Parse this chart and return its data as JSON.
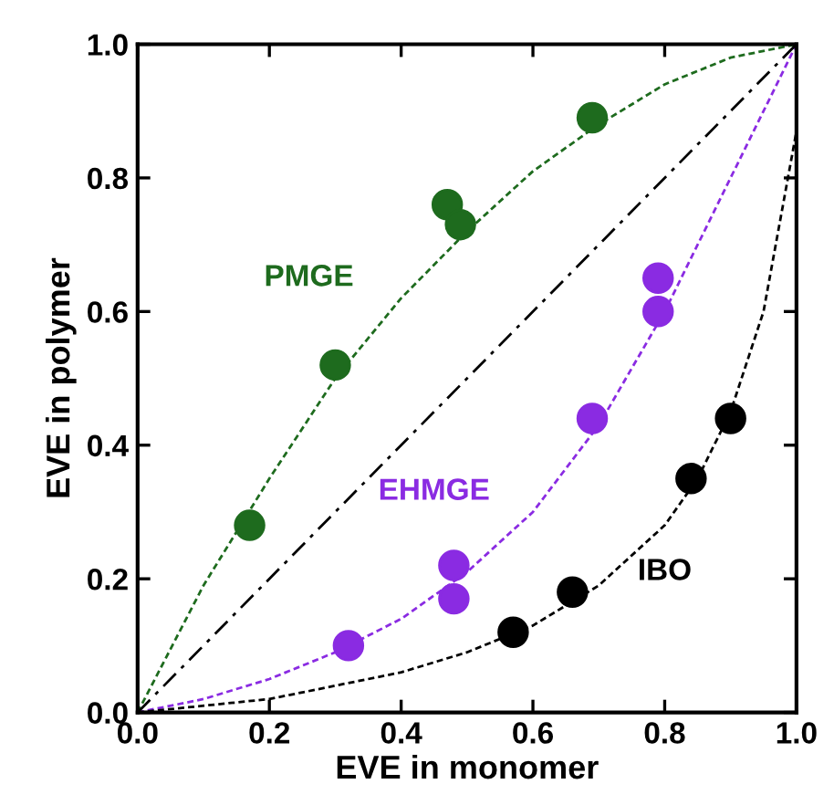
{
  "chart_data": {
    "type": "scatter",
    "xlabel": "EVE in monomer",
    "ylabel": "EVE in polymer",
    "xlim": [
      0,
      1
    ],
    "ylim": [
      0,
      1
    ],
    "xticks": [
      {
        "value": 0,
        "label": "0.0"
      },
      0.2,
      0.4,
      0.6,
      0.8,
      {
        "value": 1,
        "label": "1.0"
      }
    ],
    "yticks": [
      {
        "value": 0,
        "label": "0.0"
      },
      0.2,
      0.4,
      0.6,
      0.8,
      {
        "value": 1,
        "label": "1.0"
      }
    ],
    "grid": false,
    "legend": false,
    "marker": "circle",
    "series": [
      {
        "type": "line",
        "color": "#1e6b1e",
        "line_style": "dotted",
        "marker": "none",
        "x": [
          0,
          0.1,
          0.2,
          0.3,
          0.4,
          0.5,
          0.6,
          0.7,
          0.8,
          0.9,
          1
        ],
        "values": [
          0,
          0.19,
          0.35,
          0.5,
          0.62,
          0.72,
          0.81,
          0.88,
          0.94,
          0.98,
          1
        ]
      },
      {
        "type": "line",
        "color": "#8a2be2",
        "line_style": "dotted",
        "marker": "none",
        "x": [
          0,
          0.1,
          0.2,
          0.3,
          0.4,
          0.5,
          0.6,
          0.7,
          0.8,
          0.9,
          1
        ],
        "values": [
          0,
          0.02,
          0.05,
          0.09,
          0.14,
          0.21,
          0.3,
          0.43,
          0.6,
          0.8,
          1
        ]
      },
      {
        "type": "line",
        "color": "#000000",
        "line_style": "dotted",
        "marker": "none",
        "x": [
          0,
          0.2,
          0.4,
          0.5,
          0.6,
          0.7,
          0.8,
          0.85,
          0.9,
          0.95,
          1
        ],
        "values": [
          0,
          0.02,
          0.06,
          0.09,
          0.13,
          0.19,
          0.28,
          0.35,
          0.45,
          0.6,
          0.87
        ]
      },
      {
        "type": "line",
        "color": "#000000",
        "line_style": "dashed",
        "marker": "none",
        "x": [
          0,
          1
        ],
        "values": [
          0,
          1
        ]
      },
      {
        "name": "PMGE",
        "color": "#1e6b1e",
        "x": [
          0.17,
          0.3,
          0.47,
          0.49,
          0.69
        ],
        "values": [
          0.28,
          0.52,
          0.76,
          0.73,
          0.89
        ]
      },
      {
        "name": "EHMGE",
        "color": "#8a2be2",
        "x": [
          0.32,
          0.48,
          0.48,
          0.69,
          0.79,
          0.79
        ],
        "values": [
          0.1,
          0.17,
          0.22,
          0.44,
          0.6,
          0.65
        ]
      },
      {
        "name": "IBO",
        "color": "#000000",
        "x": [
          0.57,
          0.66,
          0.84,
          0.9
        ],
        "values": [
          0.12,
          0.18,
          0.35,
          0.44
        ]
      }
    ]
  }
}
